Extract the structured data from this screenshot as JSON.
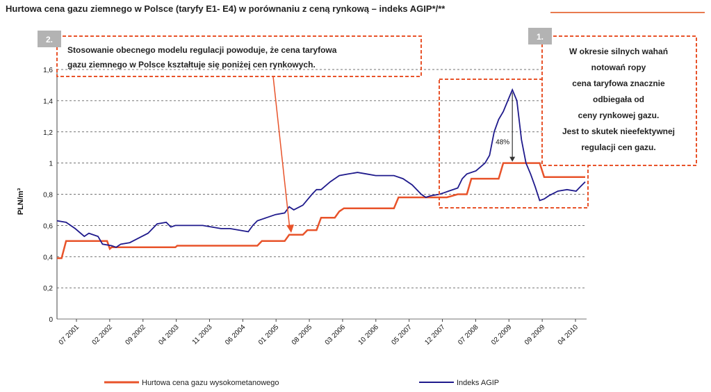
{
  "title": "Hurtowa cena gazu ziemnego w Polsce (taryfy E1- E4) w porównaniu z ceną rynkową – indeks AGIP*/**",
  "colors": {
    "tariff": "#e8532a",
    "agip": "#1f1a8c",
    "box": "#e8532a",
    "badge": "#b3b3b3"
  },
  "annotations": {
    "box1": {
      "badge": "1.",
      "lines": [
        "W okresie silnych wahań",
        "notowań ropy",
        "cena taryfowa znacznie",
        "odbiegała od",
        "ceny rynkowej gazu.",
        "Jest to skutek nieefektywnej",
        "regulacji cen gazu."
      ]
    },
    "box2": {
      "badge": "2.",
      "lines": [
        "Stosowanie obecnego modelu regulacji powoduje, że cena taryfowa",
        "gazu ziemnego w Polsce kształtuje się poniżej cen rynkowych."
      ]
    },
    "gap_label": "48%"
  },
  "chart_data": {
    "type": "line",
    "title": "Hurtowa cena gazu ziemnego w Polsce (taryfy E1- E4) w porównaniu z ceną rynkową – indeks AGIP*/**",
    "ylabel": "PLN/m³",
    "ylim": [
      0,
      1.6
    ],
    "yticks": [
      "0",
      "0,2",
      "0,4",
      "0,6",
      "0,8",
      "1",
      "1,2",
      "1,4",
      "1,6"
    ],
    "grid": "horizontal-dashed",
    "legend_position": "bottom",
    "x_ticks": [
      "07 2001",
      "02 2002",
      "09 2002",
      "04 2003",
      "11 2003",
      "06 2004",
      "01 2005",
      "08 2005",
      "03 2006",
      "10 2006",
      "05 2007",
      "12 2007",
      "07 2008",
      "02 2009",
      "09 2009",
      "04 2010"
    ],
    "series": [
      {
        "name": "Hurtowa cena gazu wysokometanowego",
        "points": [
          [
            0,
            0.39
          ],
          [
            0.5,
            0.39
          ],
          [
            1,
            0.5
          ],
          [
            4.5,
            0.5
          ],
          [
            5.5,
            0.5
          ],
          [
            5.8,
            0.45
          ],
          [
            6,
            0.46
          ],
          [
            12,
            0.46
          ],
          [
            13,
            0.46
          ],
          [
            13.2,
            0.47
          ],
          [
            19,
            0.47
          ],
          [
            22,
            0.47
          ],
          [
            22.5,
            0.5
          ],
          [
            25,
            0.5
          ],
          [
            25.5,
            0.54
          ],
          [
            27,
            0.54
          ],
          [
            27.5,
            0.57
          ],
          [
            28.5,
            0.57
          ],
          [
            29,
            0.65
          ],
          [
            30.5,
            0.65
          ],
          [
            31,
            0.69
          ],
          [
            31.5,
            0.71
          ],
          [
            37,
            0.71
          ],
          [
            37.5,
            0.78
          ],
          [
            42,
            0.78
          ],
          [
            42.8,
            0.78
          ],
          [
            44,
            0.8
          ],
          [
            45,
            0.8
          ],
          [
            45.5,
            0.9
          ],
          [
            48.5,
            0.9
          ],
          [
            49,
            1.0
          ],
          [
            53,
            1.0
          ],
          [
            53.5,
            0.91
          ],
          [
            58,
            0.91
          ]
        ]
      },
      {
        "name": "Indeks AGIP",
        "points": [
          [
            0,
            0.63
          ],
          [
            1,
            0.62
          ],
          [
            2,
            0.58
          ],
          [
            3,
            0.53
          ],
          [
            3.5,
            0.55
          ],
          [
            4.5,
            0.53
          ],
          [
            5,
            0.48
          ],
          [
            6,
            0.47
          ],
          [
            6.5,
            0.46
          ],
          [
            7,
            0.48
          ],
          [
            8,
            0.49
          ],
          [
            9,
            0.52
          ],
          [
            10,
            0.55
          ],
          [
            11,
            0.61
          ],
          [
            12,
            0.62
          ],
          [
            12.5,
            0.59
          ],
          [
            13,
            0.6
          ],
          [
            14,
            0.6
          ],
          [
            16,
            0.6
          ],
          [
            17,
            0.59
          ],
          [
            18,
            0.58
          ],
          [
            19,
            0.58
          ],
          [
            20,
            0.57
          ],
          [
            21,
            0.56
          ],
          [
            21.5,
            0.6
          ],
          [
            22,
            0.63
          ],
          [
            23,
            0.65
          ],
          [
            24,
            0.67
          ],
          [
            25,
            0.68
          ],
          [
            25.5,
            0.72
          ],
          [
            26,
            0.7
          ],
          [
            27,
            0.73
          ],
          [
            28,
            0.8
          ],
          [
            28.5,
            0.83
          ],
          [
            29,
            0.83
          ],
          [
            30,
            0.88
          ],
          [
            31,
            0.92
          ],
          [
            32,
            0.93
          ],
          [
            33,
            0.94
          ],
          [
            34,
            0.93
          ],
          [
            35,
            0.92
          ],
          [
            36,
            0.92
          ],
          [
            37,
            0.92
          ],
          [
            38,
            0.9
          ],
          [
            39,
            0.86
          ],
          [
            40,
            0.8
          ],
          [
            40.5,
            0.78
          ],
          [
            41,
            0.79
          ],
          [
            42,
            0.8
          ],
          [
            42.5,
            0.81
          ],
          [
            43,
            0.82
          ],
          [
            44,
            0.84
          ],
          [
            44.5,
            0.9
          ],
          [
            45,
            0.93
          ],
          [
            46,
            0.95
          ],
          [
            47,
            1.0
          ],
          [
            47.5,
            1.05
          ],
          [
            48,
            1.2
          ],
          [
            48.5,
            1.28
          ],
          [
            49,
            1.33
          ],
          [
            49.5,
            1.4
          ],
          [
            50,
            1.47
          ],
          [
            50.5,
            1.4
          ],
          [
            51,
            1.15
          ],
          [
            51.5,
            1.0
          ],
          [
            52,
            0.93
          ],
          [
            52.5,
            0.85
          ],
          [
            53,
            0.76
          ],
          [
            53.5,
            0.77
          ],
          [
            54,
            0.79
          ],
          [
            55,
            0.82
          ],
          [
            56,
            0.83
          ],
          [
            57,
            0.82
          ],
          [
            57.5,
            0.85
          ],
          [
            58,
            0.88
          ]
        ]
      }
    ]
  }
}
